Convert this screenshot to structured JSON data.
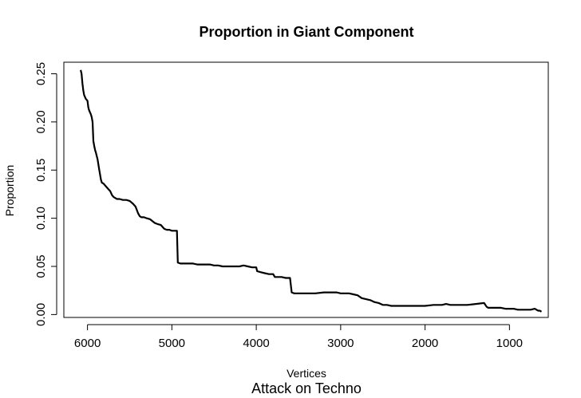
{
  "chart_data": {
    "type": "line",
    "title": "Proportion in Giant Component",
    "xlabel": "Vertices",
    "ylabel": "Proportion",
    "caption": "Attack on Techno",
    "xlim": [
      6280,
      540
    ],
    "ylim": [
      -0.003,
      0.262
    ],
    "x_reversed": true,
    "grid": false,
    "xticks": [
      6000,
      5000,
      4000,
      3000,
      2000,
      1000
    ],
    "xtick_labels": [
      "6000",
      "5000",
      "4000",
      "3000",
      "2000",
      "1000"
    ],
    "yticks": [
      0.0,
      0.05,
      0.1,
      0.15,
      0.2,
      0.25
    ],
    "ytick_labels": [
      "0.00",
      "0.05",
      "0.10",
      "0.15",
      "0.20",
      "0.25"
    ],
    "line_color": "#000000",
    "series": [
      {
        "x": [
          6080,
          6070,
          6060,
          6050,
          6040,
          6020,
          6000,
          5990,
          5980,
          5960,
          5950,
          5940,
          5930,
          5920,
          5910,
          5900,
          5880,
          5860,
          5840,
          5830,
          5810,
          5790,
          5770,
          5750,
          5730,
          5710,
          5690,
          5670,
          5650,
          5620,
          5580,
          5540,
          5500,
          5460,
          5430,
          5400,
          5380,
          5360,
          5330,
          5300,
          5260,
          5230,
          5200,
          5170,
          5130,
          5090,
          5060,
          5030,
          5000,
          4960,
          4940,
          4930,
          4900,
          4850,
          4800,
          4750,
          4700,
          4650,
          4600,
          4550,
          4500,
          4450,
          4400,
          4350,
          4300,
          4250,
          4200,
          4150,
          4100,
          4050,
          4000,
          3990,
          3950,
          3900,
          3850,
          3800,
          3780,
          3740,
          3700,
          3650,
          3620,
          3600,
          3580,
          3550,
          3500,
          3400,
          3300,
          3200,
          3100,
          3050,
          3000,
          2950,
          2900,
          2850,
          2800,
          2750,
          2700,
          2650,
          2600,
          2550,
          2500,
          2450,
          2400,
          2300,
          2200,
          2100,
          2000,
          1900,
          1800,
          1750,
          1700,
          1600,
          1500,
          1400,
          1300,
          1270,
          1250,
          1200,
          1100,
          1050,
          1000,
          950,
          900,
          850,
          800,
          750,
          700,
          680,
          660,
          640,
          620
        ],
        "y": [
          0.254,
          0.25,
          0.24,
          0.233,
          0.228,
          0.224,
          0.222,
          0.215,
          0.212,
          0.208,
          0.205,
          0.2,
          0.18,
          0.175,
          0.171,
          0.168,
          0.161,
          0.15,
          0.14,
          0.137,
          0.136,
          0.134,
          0.132,
          0.13,
          0.128,
          0.124,
          0.122,
          0.121,
          0.12,
          0.12,
          0.119,
          0.119,
          0.118,
          0.115,
          0.112,
          0.105,
          0.102,
          0.101,
          0.101,
          0.1,
          0.099,
          0.097,
          0.095,
          0.094,
          0.093,
          0.089,
          0.088,
          0.088,
          0.087,
          0.087,
          0.087,
          0.054,
          0.053,
          0.053,
          0.053,
          0.053,
          0.052,
          0.052,
          0.052,
          0.052,
          0.051,
          0.051,
          0.05,
          0.05,
          0.05,
          0.05,
          0.05,
          0.051,
          0.05,
          0.049,
          0.049,
          0.045,
          0.044,
          0.043,
          0.042,
          0.042,
          0.039,
          0.039,
          0.039,
          0.038,
          0.038,
          0.038,
          0.023,
          0.022,
          0.022,
          0.022,
          0.022,
          0.023,
          0.023,
          0.023,
          0.022,
          0.022,
          0.022,
          0.021,
          0.02,
          0.017,
          0.016,
          0.015,
          0.013,
          0.012,
          0.01,
          0.01,
          0.009,
          0.009,
          0.009,
          0.009,
          0.009,
          0.01,
          0.01,
          0.011,
          0.01,
          0.01,
          0.01,
          0.011,
          0.012,
          0.008,
          0.007,
          0.007,
          0.007,
          0.006,
          0.006,
          0.006,
          0.005,
          0.005,
          0.005,
          0.005,
          0.006,
          0.005,
          0.004,
          0.004,
          0.003
        ]
      }
    ]
  }
}
